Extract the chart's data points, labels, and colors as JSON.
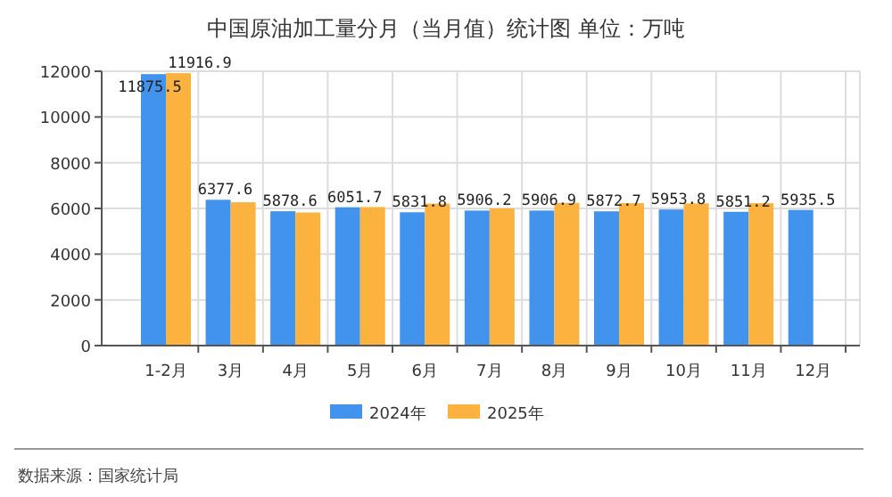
{
  "chart_data": {
    "type": "bar",
    "title": "中国原油加工量分月（当月值）统计图 单位：万吨",
    "categories": [
      "1-2月",
      "3月",
      "4月",
      "5月",
      "6月",
      "7月",
      "8月",
      "9月",
      "10月",
      "11月",
      "12月"
    ],
    "series": [
      {
        "name": "2024年",
        "color": "#4193ee",
        "values": [
          11875.5,
          6377.6,
          5878.6,
          6051.7,
          5831.8,
          5906.2,
          5906.9,
          5872.7,
          5953.8,
          5851.2,
          5935.5
        ],
        "value_labels": [
          "11875.5",
          "6377.6",
          "5878.6",
          "6051.7",
          "5831.8",
          "5906.2",
          "5906.9",
          "5872.7",
          "5953.8",
          "5851.2",
          "5935.5"
        ]
      },
      {
        "name": "2025年",
        "color": "#fbb23f",
        "values": [
          11916.9,
          6270,
          5820,
          6060,
          6210,
          6000,
          6240,
          6230,
          6220,
          6230,
          null
        ],
        "value_labels": [
          "11916.9",
          null,
          null,
          null,
          null,
          null,
          null,
          null,
          null,
          null,
          null
        ]
      }
    ],
    "ylim": [
      0,
      12000
    ],
    "yticks": [
      0,
      2000,
      4000,
      6000,
      8000,
      10000,
      12000
    ],
    "grid": true,
    "legend": "bottom",
    "annotations": [
      "数据来源：国家统计局"
    ]
  }
}
